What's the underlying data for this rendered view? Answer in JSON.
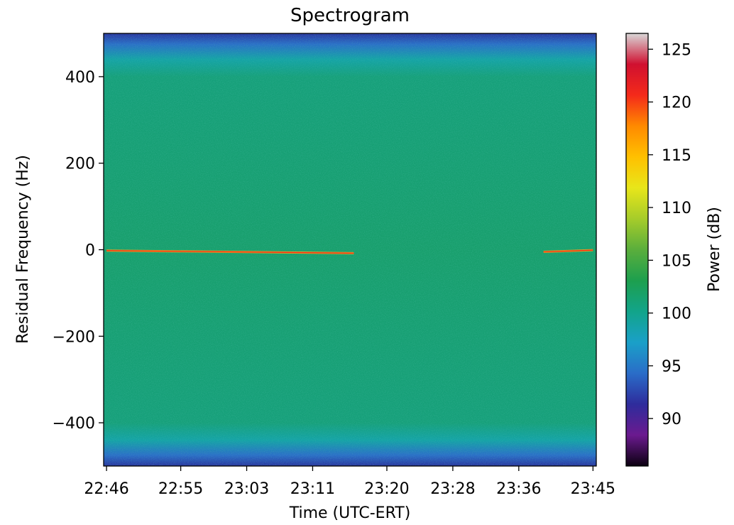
{
  "chart_data": {
    "type": "heatmap",
    "title": "Spectrogram",
    "xlabel": "Time (UTC-ERT)",
    "ylabel": "Residual Frequency (Hz)",
    "x_ticks": [
      "22:46",
      "22:55",
      "23:03",
      "23:11",
      "23:20",
      "23:28",
      "23:36",
      "23:45"
    ],
    "y_ticks": [
      400,
      200,
      0,
      -200,
      -400
    ],
    "ylim": [
      -500,
      500
    ],
    "colorbar": {
      "label": "Power (dB)",
      "ticks": [
        90,
        95,
        100,
        105,
        110,
        115,
        120,
        125
      ],
      "range": [
        85.5,
        126.5
      ],
      "colormap": [
        "#0b0010",
        "#6b1a8f",
        "#2e2c9c",
        "#2a6dc8",
        "#1aa0c8",
        "#12a48a",
        "#1d9f4e",
        "#5aae3c",
        "#a6cc2a",
        "#e8e61a",
        "#ffc000",
        "#ff8a00",
        "#f42a1a",
        "#d01030",
        "#d8d8d8"
      ]
    },
    "background_power_db": 101,
    "edge_power_db": 95,
    "signal_traces": [
      {
        "start": "22:46",
        "end": "23:16",
        "freq_start_hz": -2,
        "freq_end_hz": -8,
        "power_db": 113
      },
      {
        "start": "23:39",
        "end": "23:45",
        "freq_start_hz": -5,
        "freq_end_hz": -1,
        "power_db": 113
      }
    ],
    "grid": false
  }
}
